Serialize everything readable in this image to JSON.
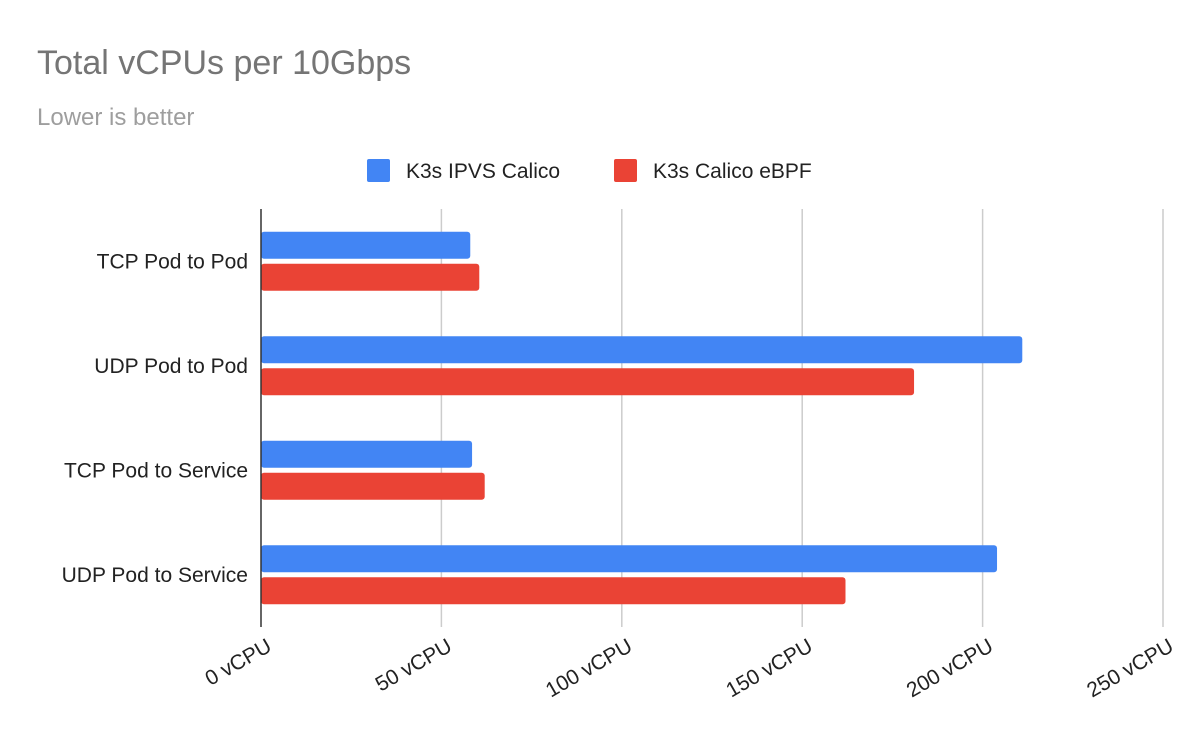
{
  "chart_data": {
    "type": "bar",
    "orientation": "horizontal",
    "title": "Total vCPUs per 10Gbps",
    "subtitle": "Lower is better",
    "categories": [
      "TCP Pod to Pod",
      "UDP Pod to Pod",
      "TCP Pod to Service",
      "UDP Pod to Service"
    ],
    "series": [
      {
        "name": "K3s IPVS Calico",
        "color": "#4285f4",
        "values": [
          58,
          211,
          58.5,
          204
        ]
      },
      {
        "name": "K3s Calico eBPF",
        "color": "#ea4335",
        "values": [
          60.5,
          181,
          62,
          162
        ]
      }
    ],
    "xlim": [
      0,
      250
    ],
    "xticks": [
      0,
      50,
      100,
      150,
      200,
      250
    ],
    "tick_suffix": " vCPU",
    "tick_labels": [
      "0 vCPU",
      "50 vCPU",
      "100 vCPU",
      "150 vCPU",
      "200 vCPU",
      "250 vCPU"
    ],
    "grid": true,
    "legend_position": "top"
  }
}
